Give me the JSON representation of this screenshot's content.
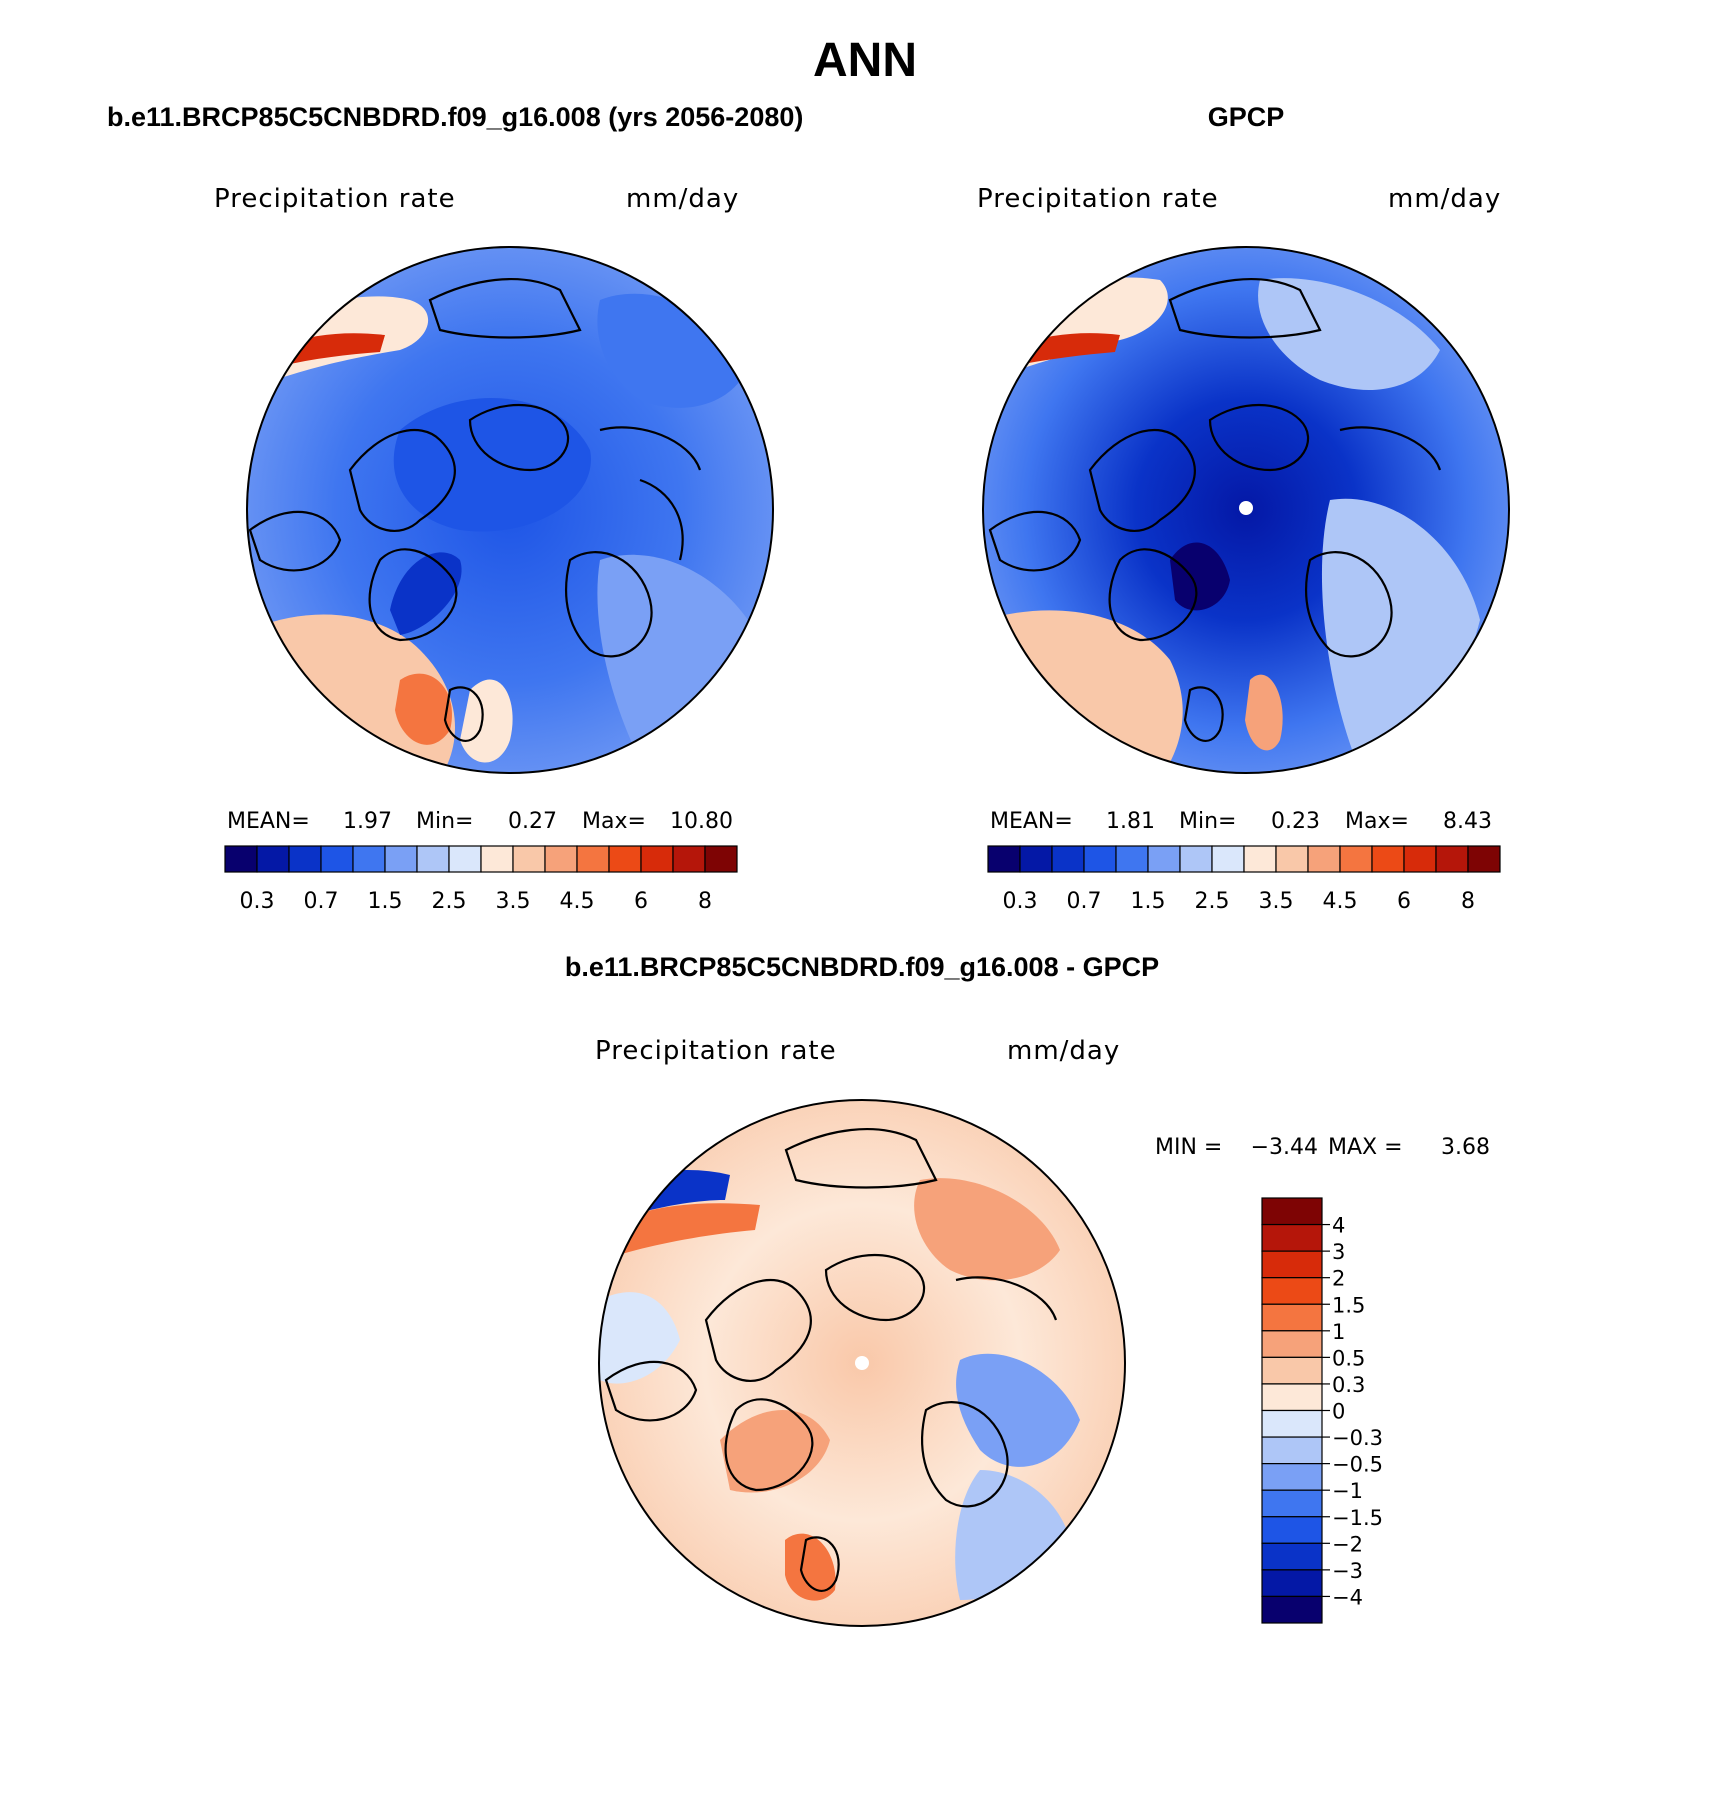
{
  "figure_title": "ANN",
  "colors": {
    "abs_levels": [
      "#08006e",
      "#0418a6",
      "#0a33c8",
      "#1e55e6",
      "#3f76f0",
      "#7aa0f5",
      "#aec6f7",
      "#dae7fb",
      "#fde8d8",
      "#f9c8a9",
      "#f6a27a",
      "#f47540",
      "#ec4a16",
      "#d72b0a",
      "#b5160a",
      "#7e0404"
    ],
    "diff_levels": [
      "#08006e",
      "#0418a6",
      "#0a33c8",
      "#1e55e6",
      "#3f76f0",
      "#7aa0f5",
      "#aec6f7",
      "#dae7fb",
      "#fde8d8",
      "#f9c8a9",
      "#f6a27a",
      "#f47540",
      "#ec4a16",
      "#d72b0a",
      "#b5160a",
      "#7e0404"
    ]
  },
  "chart_data": [
    {
      "type": "heatmap",
      "projection": "polar-stereographic",
      "title": "b.e11.BRCP85C5CNBDRD.f09_g16.008 (yrs 2056-2080)",
      "variable": "Precipitation rate",
      "units": "mm/day",
      "stats": {
        "mean_label": "MEAN=",
        "mean": "1.97",
        "min_label": "Min=",
        "min": "0.27",
        "max_label": "Max=",
        "max": "10.80"
      },
      "colorbar_levels": [
        0.2,
        0.3,
        0.5,
        0.7,
        1,
        1.5,
        2,
        2.5,
        3,
        3.5,
        4,
        4.5,
        5,
        6,
        7,
        8,
        9
      ],
      "colorbar_tick_labels": [
        "0.3",
        "0.7",
        "1.5",
        "2.5",
        "3.5",
        "4.5",
        "6",
        "8"
      ],
      "colorbar_orientation": "horizontal"
    },
    {
      "type": "heatmap",
      "projection": "polar-stereographic",
      "title": "GPCP",
      "variable": "Precipitation rate",
      "units": "mm/day",
      "stats": {
        "mean_label": "MEAN=",
        "mean": "1.81",
        "min_label": "Min=",
        "min": "0.23",
        "max_label": "Max=",
        "max": "8.43"
      },
      "colorbar_levels": [
        0.2,
        0.3,
        0.5,
        0.7,
        1,
        1.5,
        2,
        2.5,
        3,
        3.5,
        4,
        4.5,
        5,
        6,
        7,
        8,
        9
      ],
      "colorbar_tick_labels": [
        "0.3",
        "0.7",
        "1.5",
        "2.5",
        "3.5",
        "4.5",
        "6",
        "8"
      ],
      "colorbar_orientation": "horizontal"
    },
    {
      "type": "heatmap",
      "projection": "polar-stereographic",
      "title": "b.e11.BRCP85C5CNBDRD.f09_g16.008 - GPCP",
      "variable": "Precipitation rate",
      "units": "mm/day",
      "stats": {
        "min_label": "MIN =",
        "min": "−3.44",
        "max_label": "MAX =",
        "max": "3.68"
      },
      "colorbar_tick_labels": [
        "4",
        "3",
        "2",
        "1.5",
        "1",
        "0.5",
        "0.3",
        "0",
        "−0.3",
        "−0.5",
        "−1",
        "−1.5",
        "−2",
        "−3",
        "−4"
      ],
      "colorbar_orientation": "vertical"
    }
  ]
}
